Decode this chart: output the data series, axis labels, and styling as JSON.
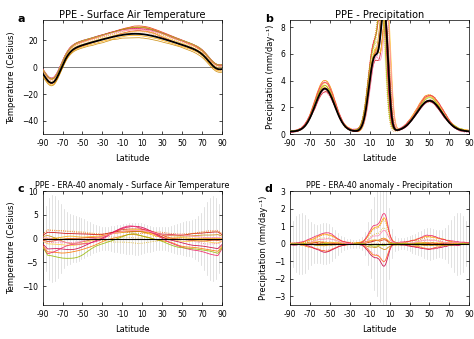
{
  "title_a": "PPE - Surface Air Temperature",
  "title_b": "PPE - Precipitation",
  "title_c": "PPE - ERA-40 anomaly - Surface Air Temperature",
  "title_d": "PPE - ERA-40 anomaly - Precipitation",
  "label_a": "a",
  "label_b": "b",
  "label_c": "c",
  "label_d": "d",
  "xlabel": "Latitude",
  "ylabel_temp": "Temperature (Celsius)",
  "ylabel_precip": "Precipitation (mm/day⁻¹)",
  "background_color": "#ffffff",
  "black_color": "#000000",
  "ylim_a": [
    -50,
    35
  ],
  "ylim_b": [
    0.0,
    8.5
  ],
  "ylim_c": [
    -14.0,
    10.0
  ],
  "ylim_d": [
    -3.5,
    3.0
  ],
  "title_fontsize": 7,
  "label_fontsize": 8,
  "tick_fontsize": 5.5,
  "axislabel_fontsize": 6
}
